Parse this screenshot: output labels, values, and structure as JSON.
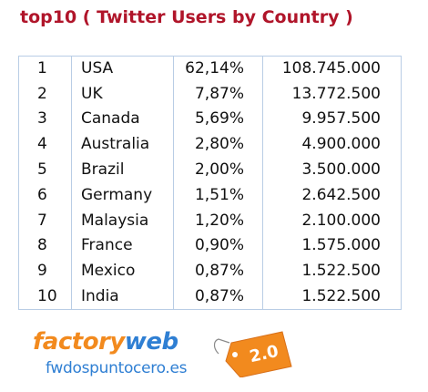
{
  "title": "top10 ( Twitter Users by Country )",
  "chart_data": {
    "type": "table",
    "title": "top10 ( Twitter Users by Country )",
    "rows": [
      {
        "rank": "1",
        "country": "USA",
        "share": "62,14%",
        "users": "108.745.000"
      },
      {
        "rank": "2",
        "country": "UK",
        "share": "7,87%",
        "users": "13.772.500"
      },
      {
        "rank": "3",
        "country": "Canada",
        "share": "5,69%",
        "users": "9.957.500"
      },
      {
        "rank": "4",
        "country": "Australia",
        "share": "2,80%",
        "users": "4.900.000"
      },
      {
        "rank": "5",
        "country": "Brazil",
        "share": "2,00%",
        "users": "3.500.000"
      },
      {
        "rank": "6",
        "country": "Germany",
        "share": "1,51%",
        "users": "2.642.500"
      },
      {
        "rank": "7",
        "country": "Malaysia",
        "share": "1,20%",
        "users": "2.100.000"
      },
      {
        "rank": "8",
        "country": "France",
        "share": "0,90%",
        "users": "1.575.000"
      },
      {
        "rank": "9",
        "country": "Mexico",
        "share": "0,87%",
        "users": "1.522.500"
      },
      {
        "rank": "10",
        "country": "India",
        "share": "0,87%",
        "users": "1.522.500"
      }
    ]
  },
  "logo": {
    "brand_part1": "factory",
    "brand_part2": "web",
    "domain": "fwdospuntocero.es",
    "version": "2.0"
  },
  "colors": {
    "title": "#b0152a",
    "grid": "#b9cde5",
    "logo_orange": "#f28a1e",
    "logo_blue": "#2f7fd3"
  }
}
